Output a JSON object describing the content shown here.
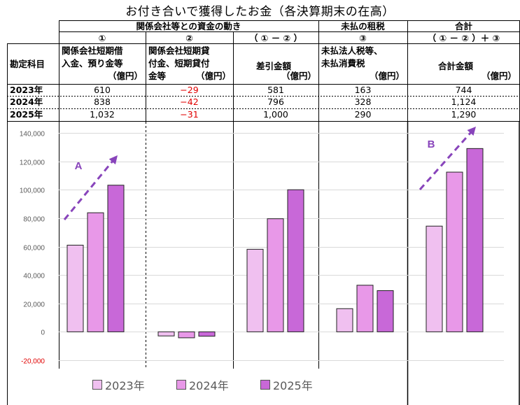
{
  "title": "お付き合いで獲得したお金（各決算期末の在高）",
  "table": {
    "group_headers": {
      "affiliates": "関係会社等との資金の動き",
      "unpaid": "未払の租税",
      "total": "合計"
    },
    "column_numbers": [
      "①",
      "②",
      "（ ① － ② ）",
      "③",
      "（ ① － ② ）＋ ③"
    ],
    "row_header": "勘定科目",
    "columns": [
      {
        "line1": "関係会社短期借",
        "line2": "入金、預り金等",
        "unit": "（億円）"
      },
      {
        "line1": "関係会社短期貸",
        "line2": "付金、短期貸付",
        "line3": "金等",
        "unit": "（億円）"
      },
      {
        "line1": "差引金額",
        "unit": "（億円）"
      },
      {
        "line1": "未払法人税等、",
        "line2": "未払消費税",
        "unit": "（億円）"
      },
      {
        "line1": "合計金額",
        "unit": "（億円）"
      }
    ],
    "rows": [
      {
        "year": "2023年",
        "values": [
          "610",
          "−29",
          "581",
          "163",
          "744"
        ]
      },
      {
        "year": "2024年",
        "values": [
          "838",
          "−42",
          "796",
          "328",
          "1,124"
        ]
      },
      {
        "year": "2025年",
        "values": [
          "1,032",
          "−31",
          "1,000",
          "290",
          "1,290"
        ]
      }
    ]
  },
  "chart_data": {
    "type": "bar",
    "title": "お付き合いで獲得したお金（各決算期末の在高）",
    "groups": [
      "①",
      "②",
      "（ ① － ② ）",
      "③",
      "（ ① － ② ）＋ ③"
    ],
    "series": [
      {
        "name": "2023年",
        "color": "#f0c0f0",
        "values": [
          61000,
          -2900,
          58100,
          16300,
          74400
        ]
      },
      {
        "name": "2024年",
        "color": "#e898e8",
        "values": [
          83800,
          -4200,
          79600,
          32800,
          112400
        ]
      },
      {
        "name": "2025年",
        "color": "#c868d8",
        "values": [
          103200,
          -3100,
          100000,
          29000,
          129000
        ]
      }
    ],
    "ylim": [
      -20000,
      140000
    ],
    "yticks": [
      {
        "value": 140000,
        "label": "140,000"
      },
      {
        "value": 120000,
        "label": "120,000"
      },
      {
        "value": 100000,
        "label": "100,000"
      },
      {
        "value": 80000,
        "label": "80,000"
      },
      {
        "value": 60000,
        "label": "60,000"
      },
      {
        "value": 40000,
        "label": "40,000"
      },
      {
        "value": 20000,
        "label": "20,000"
      },
      {
        "value": 0,
        "label": "0"
      },
      {
        "value": -20000,
        "label": "-20,000"
      }
    ],
    "grid": true,
    "legend": "bottom",
    "annotations": [
      {
        "label": "A",
        "color": "#8844bb",
        "group": 0
      },
      {
        "label": "B",
        "color": "#8844bb",
        "group": 4
      }
    ],
    "negative_tick_color": "#e00000"
  }
}
